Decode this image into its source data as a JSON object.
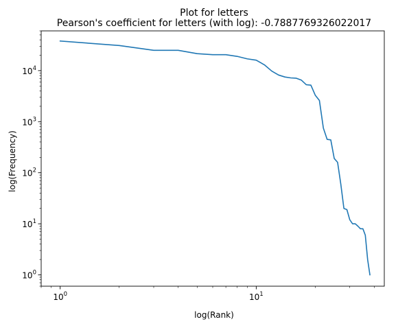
{
  "chart_data": {
    "type": "line",
    "title": "Plot for letters",
    "subtitle": "Pearson's coefficient for letters (with log): -0.7887769326022017",
    "xlabel": "log(Rank)",
    "ylabel": "log(Frequency)",
    "xscale": "log",
    "yscale": "log",
    "xlim": [
      0.8,
      45
    ],
    "ylim": [
      0.6,
      60000
    ],
    "grid": false,
    "x_ticks": [
      {
        "value": 1,
        "base": "10",
        "exp": "0"
      },
      {
        "value": 10,
        "base": "10",
        "exp": "1"
      }
    ],
    "y_ticks": [
      {
        "value": 1,
        "base": "10",
        "exp": "0"
      },
      {
        "value": 10,
        "base": "10",
        "exp": "1"
      },
      {
        "value": 100,
        "base": "10",
        "exp": "2"
      },
      {
        "value": 1000,
        "base": "10",
        "exp": "3"
      },
      {
        "value": 10000,
        "base": "10",
        "exp": "4"
      }
    ],
    "series": [
      {
        "color": "#1f77b4",
        "x": [
          1,
          2,
          3,
          4,
          5,
          6,
          7,
          8,
          9,
          10,
          11,
          12,
          13,
          14,
          15,
          16,
          17,
          18,
          19,
          20,
          21,
          22,
          23,
          24,
          25,
          26,
          27,
          28,
          29,
          30,
          31,
          32,
          33,
          34,
          35,
          36,
          37,
          38
        ],
        "values": [
          38000,
          31000,
          25000,
          25000,
          21500,
          20500,
          20500,
          19000,
          17000,
          16000,
          13000,
          9800,
          8200,
          7500,
          7200,
          7100,
          6500,
          5300,
          5200,
          3300,
          2600,
          750,
          450,
          440,
          190,
          160,
          60,
          20,
          19,
          12,
          10,
          10,
          9,
          8,
          8,
          6,
          2,
          1
        ]
      }
    ]
  }
}
